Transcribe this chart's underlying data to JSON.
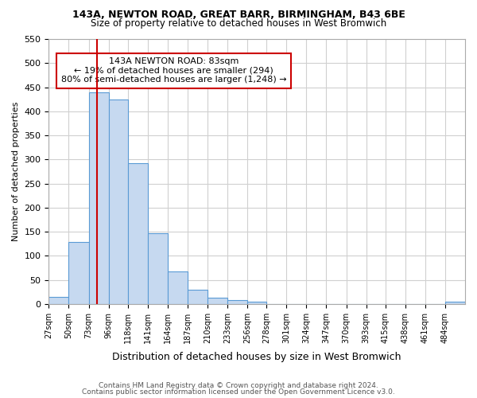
{
  "title": "143A, NEWTON ROAD, GREAT BARR, BIRMINGHAM, B43 6BE",
  "subtitle": "Size of property relative to detached houses in West Bromwich",
  "xlabel": "Distribution of detached houses by size in West Bromwich",
  "ylabel": "Number of detached properties",
  "footer_line1": "Contains HM Land Registry data © Crown copyright and database right 2024.",
  "footer_line2": "Contains public sector information licensed under the Open Government Licence v3.0.",
  "annotation_line1": "143A NEWTON ROAD: 83sqm",
  "annotation_line2": "← 19% of detached houses are smaller (294)",
  "annotation_line3": "80% of semi-detached houses are larger (1,248) →",
  "bar_edges": [
    27,
    50,
    73,
    96,
    118,
    141,
    164,
    187,
    210,
    233,
    256,
    278,
    301,
    324,
    347,
    370,
    393,
    415,
    438,
    461,
    484,
    507
  ],
  "bar_heights": [
    15,
    128,
    440,
    425,
    292,
    147,
    68,
    30,
    13,
    8,
    5,
    0,
    0,
    0,
    0,
    0,
    0,
    0,
    0,
    0,
    5
  ],
  "bar_color": "#c6d9f0",
  "bar_edge_color": "#5a9bd5",
  "marker_x": 83,
  "marker_color": "#cc0000",
  "ylim": [
    0,
    550
  ],
  "xlim": [
    27,
    507
  ],
  "xtick_labels": [
    "27sqm",
    "50sqm",
    "73sqm",
    "96sqm",
    "118sqm",
    "141sqm",
    "164sqm",
    "187sqm",
    "210sqm",
    "233sqm",
    "256sqm",
    "278sqm",
    "301sqm",
    "324sqm",
    "347sqm",
    "370sqm",
    "393sqm",
    "415sqm",
    "438sqm",
    "461sqm",
    "484sqm"
  ],
  "xtick_positions": [
    27,
    50,
    73,
    96,
    118,
    141,
    164,
    187,
    210,
    233,
    256,
    278,
    301,
    324,
    347,
    370,
    393,
    415,
    438,
    461,
    484
  ],
  "ytick_positions": [
    0,
    50,
    100,
    150,
    200,
    250,
    300,
    350,
    400,
    450,
    500,
    550
  ],
  "grid_color": "#d0d0d0",
  "background_color": "#ffffff",
  "annotation_box_color": "#ffffff",
  "annotation_box_edgecolor": "#cc0000"
}
